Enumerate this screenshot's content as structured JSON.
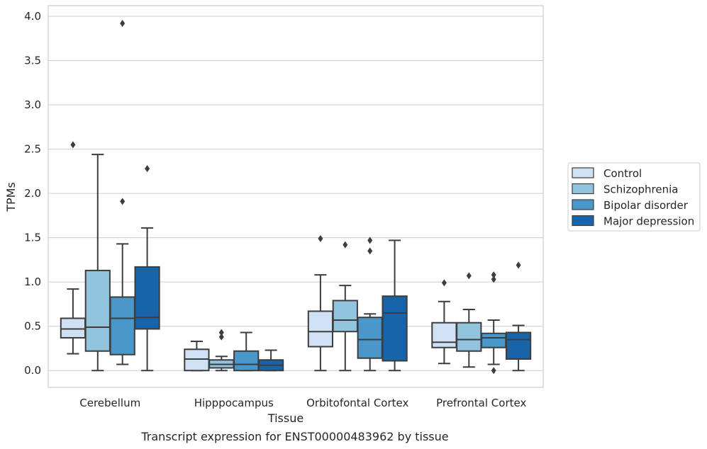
{
  "chart_data": {
    "type": "box",
    "title": "",
    "caption": "Transcript expression for ENST00000483962 by tissue",
    "xlabel": "Tissue",
    "ylabel": "TPMs",
    "ylim": [
      -0.19,
      4.12
    ],
    "yticks": [
      0.0,
      0.5,
      1.0,
      1.5,
      2.0,
      2.5,
      3.0,
      3.5,
      4.0
    ],
    "ytick_labels": [
      "0.0",
      "0.5",
      "1.0",
      "1.5",
      "2.0",
      "2.5",
      "3.0",
      "3.5",
      "4.0"
    ],
    "grid": true,
    "legend_position": "right",
    "categories": [
      "Cerebellum",
      "Hipppocampus",
      "Orbitofontal Cortex",
      "Prefrontal Cortex"
    ],
    "series": [
      {
        "name": "Control",
        "color": "#cfe1f2",
        "boxes": [
          {
            "whisker_low": 0.19,
            "q1": 0.37,
            "median": 0.47,
            "q3": 0.59,
            "whisker_high": 0.92,
            "outliers": [
              2.55
            ]
          },
          {
            "whisker_low": 0.0,
            "q1": 0.0,
            "median": 0.13,
            "q3": 0.24,
            "whisker_high": 0.33,
            "outliers": []
          },
          {
            "whisker_low": 0.0,
            "q1": 0.27,
            "median": 0.44,
            "q3": 0.67,
            "whisker_high": 1.08,
            "outliers": [
              1.49
            ]
          },
          {
            "whisker_low": 0.08,
            "q1": 0.26,
            "median": 0.32,
            "q3": 0.54,
            "whisker_high": 0.78,
            "outliers": [
              0.99
            ]
          }
        ]
      },
      {
        "name": "Schizophrenia",
        "color": "#93c4de",
        "boxes": [
          {
            "whisker_low": 0.0,
            "q1": 0.22,
            "median": 0.49,
            "q3": 1.13,
            "whisker_high": 2.44,
            "outliers": []
          },
          {
            "whisker_low": 0.0,
            "q1": 0.03,
            "median": 0.07,
            "q3": 0.12,
            "whisker_high": 0.16,
            "outliers": [
              0.38,
              0.43
            ]
          },
          {
            "whisker_low": 0.0,
            "q1": 0.44,
            "median": 0.57,
            "q3": 0.79,
            "whisker_high": 0.96,
            "outliers": [
              1.42
            ]
          },
          {
            "whisker_low": 0.04,
            "q1": 0.22,
            "median": 0.35,
            "q3": 0.54,
            "whisker_high": 0.69,
            "outliers": [
              1.07
            ]
          }
        ]
      },
      {
        "name": "Bipolar disorder",
        "color": "#4a98c9",
        "boxes": [
          {
            "whisker_low": 0.07,
            "q1": 0.18,
            "median": 0.59,
            "q3": 0.83,
            "whisker_high": 1.43,
            "outliers": [
              1.91,
              3.92
            ]
          },
          {
            "whisker_low": 0.0,
            "q1": 0.0,
            "median": 0.07,
            "q3": 0.22,
            "whisker_high": 0.43,
            "outliers": []
          },
          {
            "whisker_low": 0.0,
            "q1": 0.14,
            "median": 0.35,
            "q3": 0.6,
            "whisker_high": 0.64,
            "outliers": [
              1.35,
              1.47
            ]
          },
          {
            "whisker_low": 0.07,
            "q1": 0.26,
            "median": 0.37,
            "q3": 0.42,
            "whisker_high": 0.57,
            "outliers": [
              0.0,
              1.03,
              1.08
            ]
          }
        ]
      },
      {
        "name": "Major depression",
        "color": "#1764ab",
        "boxes": [
          {
            "whisker_low": 0.0,
            "q1": 0.47,
            "median": 0.6,
            "q3": 1.17,
            "whisker_high": 1.61,
            "outliers": [
              2.28
            ]
          },
          {
            "whisker_low": 0.0,
            "q1": 0.0,
            "median": 0.06,
            "q3": 0.12,
            "whisker_high": 0.23,
            "outliers": []
          },
          {
            "whisker_low": 0.0,
            "q1": 0.11,
            "median": 0.65,
            "q3": 0.84,
            "whisker_high": 1.47,
            "outliers": []
          },
          {
            "whisker_low": 0.0,
            "q1": 0.13,
            "median": 0.35,
            "q3": 0.43,
            "whisker_high": 0.51,
            "outliers": [
              1.19
            ]
          }
        ]
      }
    ]
  }
}
